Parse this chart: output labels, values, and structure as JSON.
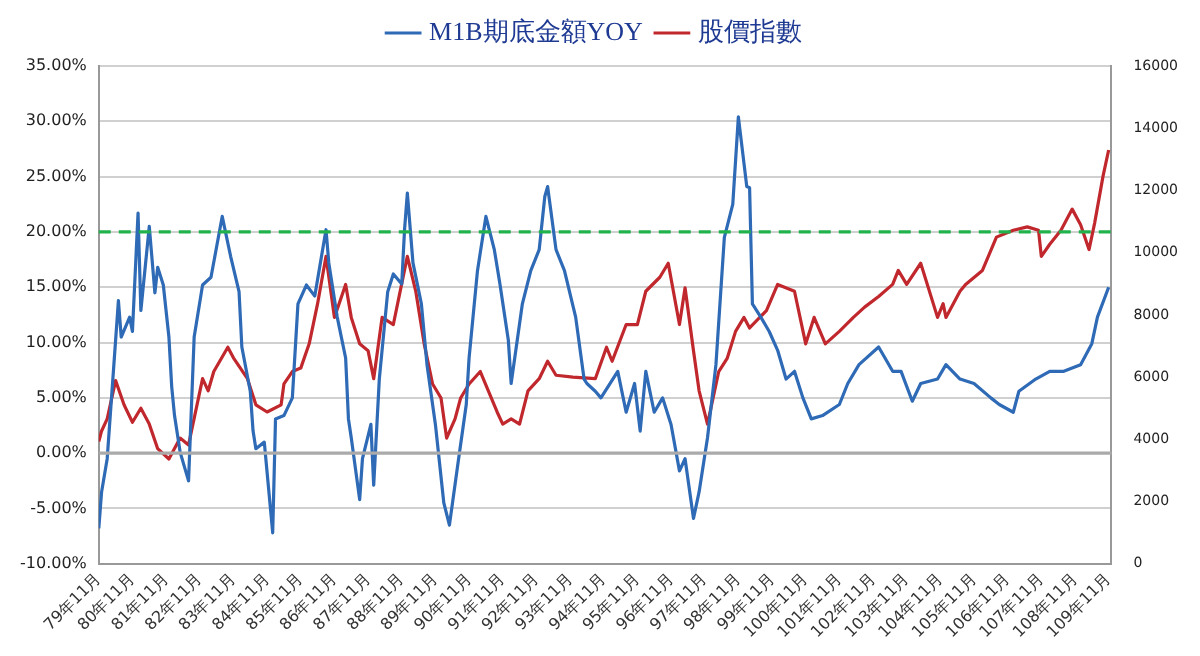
{
  "chart_data": {
    "type": "line",
    "legend": "top",
    "grid": "y",
    "marker": "none",
    "line_style": "solid",
    "xlim": [
      "1990-11",
      "2020-12"
    ],
    "xticks": [
      {
        "value": "1990-11",
        "label": "79年11月"
      },
      {
        "value": "1991-11",
        "label": "80年11月"
      },
      {
        "value": "1992-11",
        "label": "81年11月"
      },
      {
        "value": "1993-11",
        "label": "82年11月"
      },
      {
        "value": "1994-11",
        "label": "83年11月"
      },
      {
        "value": "1995-11",
        "label": "84年11月"
      },
      {
        "value": "1996-11",
        "label": "85年11月"
      },
      {
        "value": "1997-11",
        "label": "86年11月"
      },
      {
        "value": "1998-11",
        "label": "87年11月"
      },
      {
        "value": "1999-11",
        "label": "88年11月"
      },
      {
        "value": "2000-11",
        "label": "89年11月"
      },
      {
        "value": "2001-11",
        "label": "90年11月"
      },
      {
        "value": "2002-11",
        "label": "91年11月"
      },
      {
        "value": "2003-11",
        "label": "92年11月"
      },
      {
        "value": "2004-11",
        "label": "93年11月"
      },
      {
        "value": "2005-11",
        "label": "94年11月"
      },
      {
        "value": "2006-11",
        "label": "95年11月"
      },
      {
        "value": "2007-11",
        "label": "96年11月"
      },
      {
        "value": "2008-11",
        "label": "97年11月"
      },
      {
        "value": "2009-11",
        "label": "98年11月"
      },
      {
        "value": "2010-11",
        "label": "99年11月"
      },
      {
        "value": "2011-11",
        "label": "100年11月"
      },
      {
        "value": "2012-11",
        "label": "101年11月"
      },
      {
        "value": "2013-11",
        "label": "102年11月"
      },
      {
        "value": "2014-11",
        "label": "103年11月"
      },
      {
        "value": "2015-11",
        "label": "104年11月"
      },
      {
        "value": "2016-11",
        "label": "105年11月"
      },
      {
        "value": "2017-11",
        "label": "106年11月"
      },
      {
        "value": "2018-11",
        "label": "107年11月"
      },
      {
        "value": "2019-11",
        "label": "108年11月"
      },
      {
        "value": "2020-11",
        "label": "109年11月"
      }
    ],
    "ylim": [
      -10,
      35
    ],
    "yticks": [
      {
        "value": -10,
        "label": "-10.00%"
      },
      {
        "value": -5,
        "label": "-5.00%"
      },
      {
        "value": 0,
        "label": "0.00%"
      },
      {
        "value": 5,
        "label": "5.00%"
      },
      {
        "value": 10,
        "label": "10.00%"
      },
      {
        "value": 15,
        "label": "15.00%"
      },
      {
        "value": 20,
        "label": "20.00%"
      },
      {
        "value": 25,
        "label": "25.00%"
      },
      {
        "value": 30,
        "label": "30.00%"
      },
      {
        "value": 35,
        "label": "35.00%"
      }
    ],
    "y2lim": [
      0,
      16000
    ],
    "y2ticks": [
      0,
      2000,
      4000,
      6000,
      8000,
      10000,
      12000,
      14000,
      16000
    ],
    "ref_lines": [
      {
        "axis": "y",
        "value": 0,
        "color": "#aaaaaa",
        "line_style": "solid"
      },
      {
        "axis": "y",
        "value": 20,
        "color": "#22b24c",
        "line_style": "dashed"
      }
    ],
    "series": [
      {
        "name": "M1B期底金額YOY",
        "color": "#2e6ab5",
        "type": "line",
        "axis": "y",
        "x": [
          "1990-11",
          "1990-12",
          "1991-02",
          "1991-06",
          "1991-07",
          "1991-10",
          "1991-11",
          "1992-01",
          "1992-02",
          "1992-05",
          "1992-07",
          "1992-08",
          "1992-10",
          "1992-12",
          "1993-01",
          "1993-02",
          "1993-04",
          "1993-07",
          "1993-09",
          "1993-12",
          "1994-03",
          "1994-07",
          "1994-10",
          "1995-01",
          "1995-02",
          "1995-05",
          "1995-06",
          "1995-07",
          "1995-10",
          "1996-01",
          "1996-02",
          "1996-05",
          "1996-08",
          "1996-10",
          "1997-01",
          "1997-04",
          "1997-08",
          "1997-09",
          "1997-12",
          "1998-03",
          "1998-04",
          "1998-05",
          "1998-08",
          "1998-09",
          "1998-12",
          "1999-01",
          "1999-03",
          "1999-06",
          "1999-08",
          "1999-11",
          "1999-12",
          "2000-01",
          "2000-03",
          "2000-06",
          "2000-08",
          "2000-11",
          "2001-02",
          "2001-04",
          "2001-07",
          "2001-10",
          "2001-11",
          "2002-02",
          "2002-05",
          "2002-08",
          "2002-10",
          "2003-01",
          "2003-02",
          "2003-06",
          "2003-09",
          "2003-12",
          "2004-02",
          "2004-03",
          "2004-06",
          "2004-09",
          "2005-01",
          "2005-04",
          "2005-05",
          "2005-08",
          "2005-10",
          "2006-04",
          "2006-07",
          "2006-10",
          "2006-12",
          "2007-02",
          "2007-05",
          "2007-08",
          "2007-11",
          "2008-02",
          "2008-04",
          "2008-07",
          "2008-09",
          "2008-12",
          "2009-03",
          "2009-06",
          "2009-09",
          "2009-11",
          "2010-02",
          "2010-03",
          "2010-04",
          "2010-07",
          "2010-10",
          "2011-01",
          "2011-04",
          "2011-07",
          "2011-10",
          "2012-01",
          "2012-05",
          "2012-11",
          "2013-02",
          "2013-06",
          "2014-01",
          "2014-06",
          "2014-09",
          "2015-01",
          "2015-04",
          "2015-10",
          "2016-01",
          "2016-06",
          "2016-11",
          "2017-05",
          "2017-08",
          "2018-01",
          "2018-03",
          "2018-09",
          "2019-02",
          "2019-07",
          "2020-01",
          "2020-05",
          "2020-07",
          "2020-11"
        ],
        "values": [
          -6.8,
          -3.5,
          -0.5,
          13.8,
          10.5,
          12.3,
          11,
          21.7,
          12.9,
          20.5,
          14.5,
          16.8,
          15.2,
          10.5,
          6,
          3.4,
          0.1,
          -2.5,
          10.5,
          15.2,
          15.9,
          21.4,
          17.8,
          14.6,
          9.6,
          5.6,
          2,
          0.4,
          1,
          -7.2,
          3.1,
          3.4,
          5,
          13.5,
          15.2,
          14.2,
          20.2,
          17.2,
          12.3,
          8.6,
          3.1,
          1.4,
          -4.2,
          -0.5,
          2.6,
          -2.9,
          6.7,
          14.6,
          16.2,
          15.3,
          20.2,
          23.5,
          17.2,
          13.5,
          8,
          2.6,
          -4.5,
          -6.5,
          -1,
          4.4,
          8.6,
          16.5,
          21.4,
          18.4,
          15.3,
          10.2,
          6.3,
          13.5,
          16.5,
          18.4,
          23.2,
          24.1,
          18.4,
          16.5,
          12.3,
          6.7,
          6.3,
          5.6,
          5,
          7.4,
          3.7,
          6.3,
          2,
          7.4,
          3.7,
          5,
          2.6,
          -1.6,
          -0.5,
          -5.9,
          -3.5,
          1.4,
          8,
          19.5,
          22.5,
          30.4,
          24.1,
          24,
          13.5,
          12.3,
          11,
          9.3,
          6.7,
          7.4,
          5,
          3.1,
          3.4,
          4.4,
          6.3,
          8,
          9.6,
          7.4,
          7.4,
          4.7,
          6.3,
          6.7,
          8,
          6.7,
          6.3,
          5,
          4.4,
          3.7,
          5.6,
          6.7,
          7.4,
          7.4,
          8,
          9.9,
          12.3,
          15
        ]
      },
      {
        "name": "股價指數",
        "color": "#c0282d",
        "type": "line",
        "axis": "y2",
        "x": [
          "1990-11",
          "1990-12",
          "1991-02",
          "1991-05",
          "1991-08",
          "1991-11",
          "1992-02",
          "1992-05",
          "1992-08",
          "1992-12",
          "1993-04",
          "1993-07",
          "1993-12",
          "1994-02",
          "1994-04",
          "1994-09",
          "1994-11",
          "1995-04",
          "1995-07",
          "1995-11",
          "1996-04",
          "1996-05",
          "1996-08",
          "1996-11",
          "1997-02",
          "1997-05",
          "1997-08",
          "1997-11",
          "1998-03",
          "1998-05",
          "1998-08",
          "1998-11",
          "1999-01",
          "1999-04",
          "1999-08",
          "2000-01",
          "2000-04",
          "2000-07",
          "2000-10",
          "2001-01",
          "2001-03",
          "2001-06",
          "2001-08",
          "2001-11",
          "2002-03",
          "2002-09",
          "2002-11",
          "2003-02",
          "2003-05",
          "2003-08",
          "2003-12",
          "2004-03",
          "2004-06",
          "2004-12",
          "2005-08",
          "2005-12",
          "2006-02",
          "2006-07",
          "2006-11",
          "2007-02",
          "2007-07",
          "2007-10",
          "2008-02",
          "2008-04",
          "2008-07",
          "2008-09",
          "2008-12",
          "2009-04",
          "2009-07",
          "2009-10",
          "2010-01",
          "2010-03",
          "2010-09",
          "2011-01",
          "2011-07",
          "2011-11",
          "2012-02",
          "2012-06",
          "2012-11",
          "2013-04",
          "2013-08",
          "2014-01",
          "2014-06",
          "2014-08",
          "2014-11",
          "2015-04",
          "2015-10",
          "2015-12",
          "2016-01",
          "2016-06",
          "2016-08",
          "2017-02",
          "2017-07",
          "2018-01",
          "2018-06",
          "2018-10",
          "2018-11",
          "2019-02",
          "2019-06",
          "2019-10",
          "2020-01",
          "2020-04",
          "2020-06",
          "2020-09",
          "2020-11"
        ],
        "values": [
          3930,
          4270,
          4660,
          5890,
          5110,
          4550,
          5000,
          4490,
          3700,
          3370,
          4040,
          3820,
          5950,
          5560,
          6180,
          6960,
          6620,
          5950,
          5110,
          4880,
          5110,
          5780,
          6180,
          6290,
          7070,
          8360,
          9880,
          7920,
          8980,
          7920,
          7070,
          6850,
          5950,
          7920,
          7690,
          9880,
          8760,
          7070,
          5780,
          5330,
          4040,
          4660,
          5330,
          5780,
          6180,
          4880,
          4490,
          4660,
          4490,
          5560,
          5950,
          6510,
          6060,
          6000,
          5950,
          6960,
          6510,
          7690,
          7690,
          8760,
          9210,
          9660,
          7690,
          8870,
          6850,
          5560,
          4490,
          6180,
          6600,
          7470,
          7920,
          7580,
          8140,
          8980,
          8760,
          7070,
          7920,
          7070,
          7470,
          7920,
          8250,
          8590,
          8980,
          9430,
          8980,
          9660,
          7920,
          8360,
          7920,
          8760,
          8980,
          9430,
          10500,
          10720,
          10830,
          10720,
          9880,
          10270,
          10720,
          11400,
          10900,
          10100,
          10950,
          12460,
          13300
        ]
      }
    ]
  }
}
